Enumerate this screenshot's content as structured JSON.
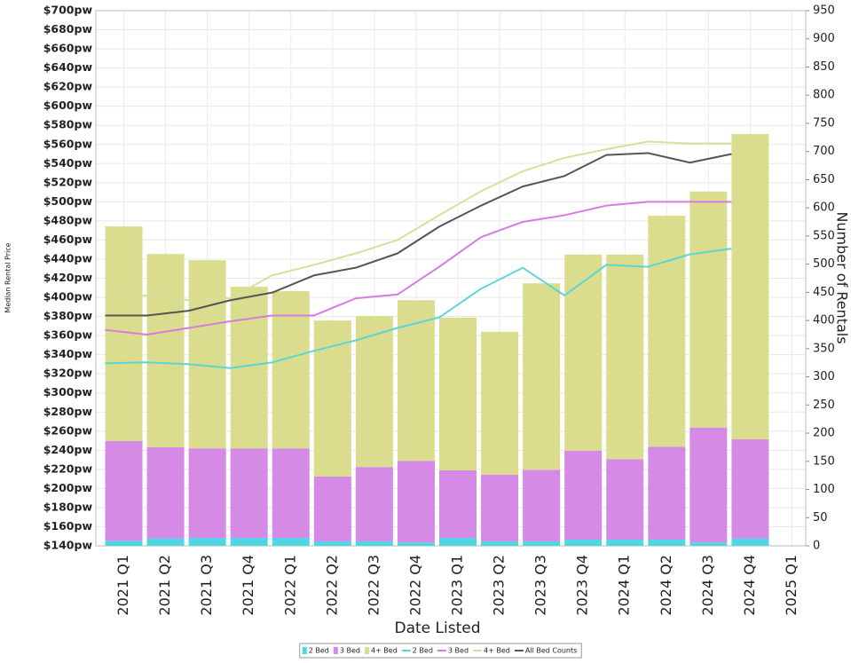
{
  "chart_data": {
    "type": "bar-line",
    "x_label": "Date Listed",
    "y_label": "Median Rental Price",
    "y2_label": "Number of Rentals",
    "categories": [
      "2021 Q1",
      "2021 Q2",
      "2021 Q3",
      "2021 Q4",
      "2022 Q1",
      "2022 Q2",
      "2022 Q3",
      "2022 Q4",
      "2023 Q1",
      "2023 Q2",
      "2023 Q3",
      "2023 Q4",
      "2024 Q1",
      "2024 Q2",
      "2024 Q3",
      "2024 Q4",
      "2025 Q1"
    ],
    "ylim": [
      140,
      700
    ],
    "yticks": [
      {
        "value": 140,
        "label": "$140pw"
      },
      {
        "value": 160,
        "label": "$160pw"
      },
      {
        "value": 180,
        "label": "$180pw"
      },
      {
        "value": 200,
        "label": "$200pw"
      },
      {
        "value": 220,
        "label": "$220pw"
      },
      {
        "value": 240,
        "label": "$240pw"
      },
      {
        "value": 260,
        "label": "$260pw"
      },
      {
        "value": 280,
        "label": "$280pw"
      },
      {
        "value": 300,
        "label": "$300pw"
      },
      {
        "value": 320,
        "label": "$320pw"
      },
      {
        "value": 340,
        "label": "$340pw"
      },
      {
        "value": 360,
        "label": "$360pw"
      },
      {
        "value": 380,
        "label": "$380pw"
      },
      {
        "value": 400,
        "label": "$400pw"
      },
      {
        "value": 420,
        "label": "$420pw"
      },
      {
        "value": 440,
        "label": "$440pw"
      },
      {
        "value": 460,
        "label": "$460pw"
      },
      {
        "value": 480,
        "label": "$480pw"
      },
      {
        "value": 500,
        "label": "$500pw"
      },
      {
        "value": 520,
        "label": "$520pw"
      },
      {
        "value": 540,
        "label": "$540pw"
      },
      {
        "value": 560,
        "label": "$560pw"
      },
      {
        "value": 580,
        "label": "$580pw"
      },
      {
        "value": 600,
        "label": "$600pw"
      },
      {
        "value": 620,
        "label": "$620pw"
      },
      {
        "value": 640,
        "label": "$640pw"
      },
      {
        "value": 660,
        "label": "$660pw"
      },
      {
        "value": 680,
        "label": "$680pw"
      },
      {
        "value": 700,
        "label": "$700pw"
      }
    ],
    "y2lim": [
      0,
      950
    ],
    "y2ticks": [
      0,
      50,
      100,
      150,
      200,
      250,
      300,
      350,
      400,
      450,
      500,
      550,
      600,
      650,
      700,
      750,
      800,
      850,
      900,
      950
    ],
    "grid": true,
    "legend": "bottom",
    "series": [
      {
        "name": "2 Bed",
        "kind": "bar",
        "axis": "y2",
        "color": "#4fd6e3",
        "values": [
          9,
          13,
          14,
          14,
          14,
          8,
          8,
          6,
          14,
          8,
          8,
          11,
          11,
          11,
          6,
          13,
          null
        ]
      },
      {
        "name": "3 Bed",
        "kind": "bar",
        "axis": "y2",
        "color": "#d58ae6",
        "values": [
          177,
          162,
          159,
          159,
          159,
          115,
          132,
          145,
          120,
          118,
          127,
          158,
          143,
          165,
          204,
          176,
          null
        ]
      },
      {
        "name": "4+ Bed",
        "kind": "bar",
        "axis": "y2",
        "color": "#dadd8e",
        "values": [
          381,
          343,
          334,
          287,
          279,
          277,
          268,
          285,
          271,
          254,
          331,
          348,
          363,
          410,
          419,
          542,
          null
        ]
      },
      {
        "name": "2 Bed",
        "kind": "line",
        "color": "#5cd6d4",
        "values": [
          331,
          332,
          330,
          326,
          332,
          344,
          355,
          368,
          379,
          409,
          431,
          402,
          434,
          432,
          445,
          451,
          null
        ]
      },
      {
        "name": "3 Bed",
        "kind": "line",
        "color": "#d67be0",
        "values": [
          366,
          361,
          368,
          375,
          381,
          381,
          399,
          403,
          432,
          463,
          479,
          486,
          496,
          500,
          500,
          500,
          null
        ]
      },
      {
        "name": "4+ Bed",
        "kind": "line",
        "color": "#d6e09c",
        "values": [
          402,
          402,
          397,
          399,
          423,
          434,
          446,
          460,
          486,
          511,
          532,
          546,
          555,
          563,
          561,
          561,
          null
        ]
      },
      {
        "name": "All Bed Counts",
        "kind": "line",
        "color": "#555555",
        "values": [
          381,
          381,
          386,
          397,
          405,
          423,
          431,
          446,
          474,
          496,
          516,
          527,
          549,
          551,
          541,
          550,
          null
        ]
      }
    ]
  }
}
